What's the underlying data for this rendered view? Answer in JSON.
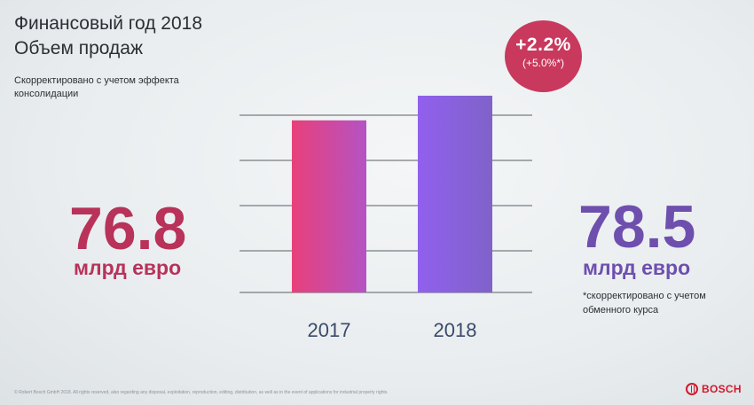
{
  "header": {
    "title_line1": "Финансовый год 2018",
    "title_line2": "Объем продаж",
    "note_line1": "Скорректировано с учетом эффекта",
    "note_line2": "консолидации"
  },
  "badge": {
    "main": "+2.2%",
    "sub": "(+5.0%*)",
    "color": "#c8395d"
  },
  "left_value": {
    "number": "76.8",
    "unit": "млрд евро",
    "color": "#b8325a"
  },
  "right_value": {
    "number": "78.5",
    "unit": "млрд евро",
    "color": "#6e4fae"
  },
  "footnote": {
    "line1": "*скорректировано с учетом",
    "line2": "обменного курса"
  },
  "copyright": "© Robert Bosch GmbH 2018. All rights reserved, also regarding any disposal, exploitation, reproduction, editing, distribution, as well as in the event of applications for industrial property rights.",
  "brand": "BOSCH",
  "chart_data": {
    "type": "bar",
    "categories": [
      "2017",
      "2018"
    ],
    "values": [
      76.8,
      78.5
    ],
    "title": "",
    "xlabel": "",
    "ylabel": "",
    "grid": true,
    "bar_gradients": [
      [
        "#e8407a",
        "#b553c4"
      ],
      [
        "#9160ee",
        "#7f62c9"
      ]
    ]
  }
}
